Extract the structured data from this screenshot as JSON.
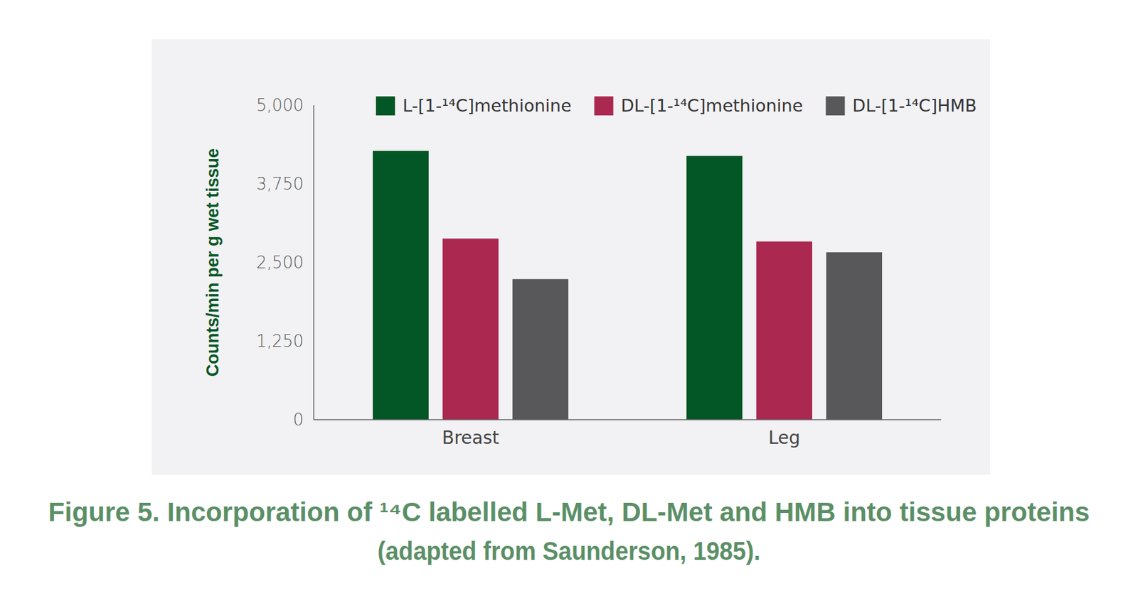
{
  "chart_data": {
    "type": "bar",
    "title": "Figure 5. Incorporation of ¹⁴C labelled L-Met, DL-Met and HMB into tissue proteins",
    "subtitle": "(adapted from Saunderson, 1985).",
    "ylabel": "Counts/min per g wet tissue",
    "categories": [
      "Breast",
      "Leg"
    ],
    "series": [
      {
        "name": "L-[1-¹⁴C]methionine",
        "color": "#035625",
        "values": [
          4274,
          4194
        ]
      },
      {
        "name": "DL-[1-¹⁴C]methionine",
        "color": "#ab2850",
        "values": [
          2880,
          2834
        ]
      },
      {
        "name": "DL-[1-¹⁴C]HMB",
        "color": "#58585a",
        "values": [
          2235,
          2661
        ]
      }
    ],
    "ylim": [
      0,
      5000
    ],
    "yticks": [
      0,
      {
        "value": 1250,
        "label": "1,250"
      },
      {
        "value": 2500,
        "label": "2,500"
      },
      {
        "value": 3750,
        "label": "3,750"
      },
      {
        "value": 5000,
        "label": "5,000"
      }
    ],
    "grid": false,
    "legend": "top"
  }
}
